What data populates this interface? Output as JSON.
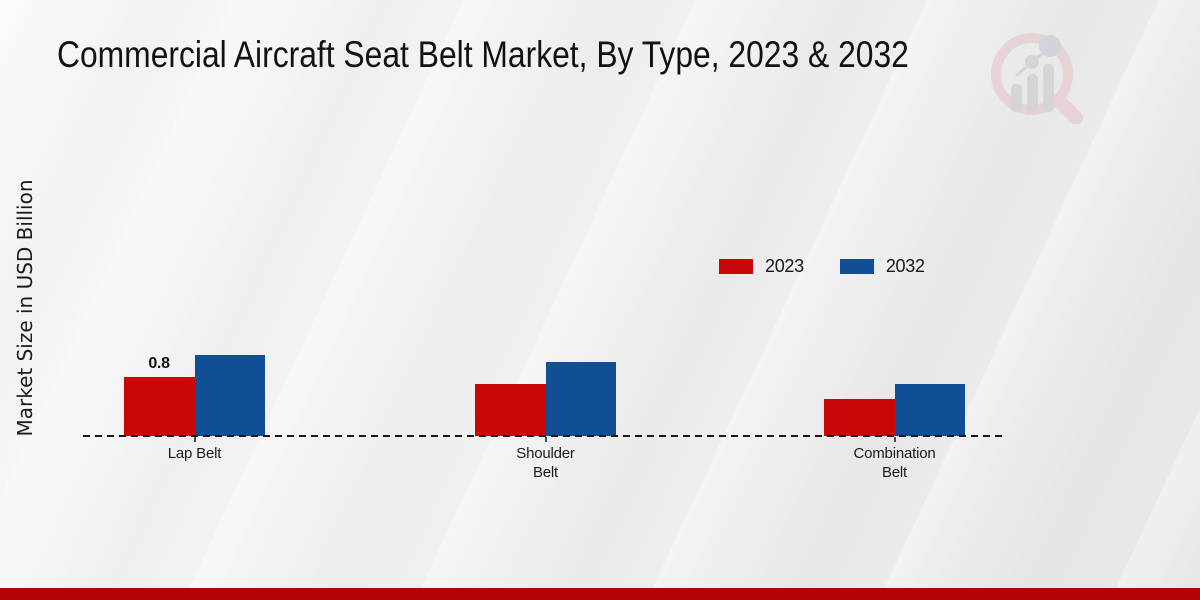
{
  "title": "Commercial Aircraft Seat Belt Market, By Type, 2023 & 2032",
  "y_axis_label": "Market Size in USD Billion",
  "watermark_icon": "market-research-future-logo",
  "colors": {
    "series_2023": "#cb0606",
    "series_2032": "#104f96",
    "footer_bar": "#b30505",
    "baseline": "#1a1a1a",
    "watermark_pink": "#dfb6ba",
    "watermark_grey": "#b9b9c1"
  },
  "chart_data": {
    "type": "bar",
    "title": "Commercial Aircraft Seat Belt Market, By Type, 2023 & 2032",
    "ylabel": "Market Size in USD Billion",
    "xlabel": "",
    "categories": [
      "Lap Belt",
      "Shoulder Belt",
      "Combination Belt"
    ],
    "series": [
      {
        "name": "2023",
        "color": "#cb0606",
        "values": [
          0.8,
          0.7,
          0.5
        ]
      },
      {
        "name": "2032",
        "color": "#104f96",
        "values": [
          1.1,
          1.0,
          0.7
        ]
      }
    ],
    "data_labels": [
      {
        "series": "2023",
        "category": "Lap Belt",
        "text": "0.8"
      }
    ],
    "ylim": [
      0,
      4
    ],
    "grid": false,
    "y_axis_ticks_visible": false,
    "baseline_style": "dashed",
    "legend_position": "center-right"
  }
}
